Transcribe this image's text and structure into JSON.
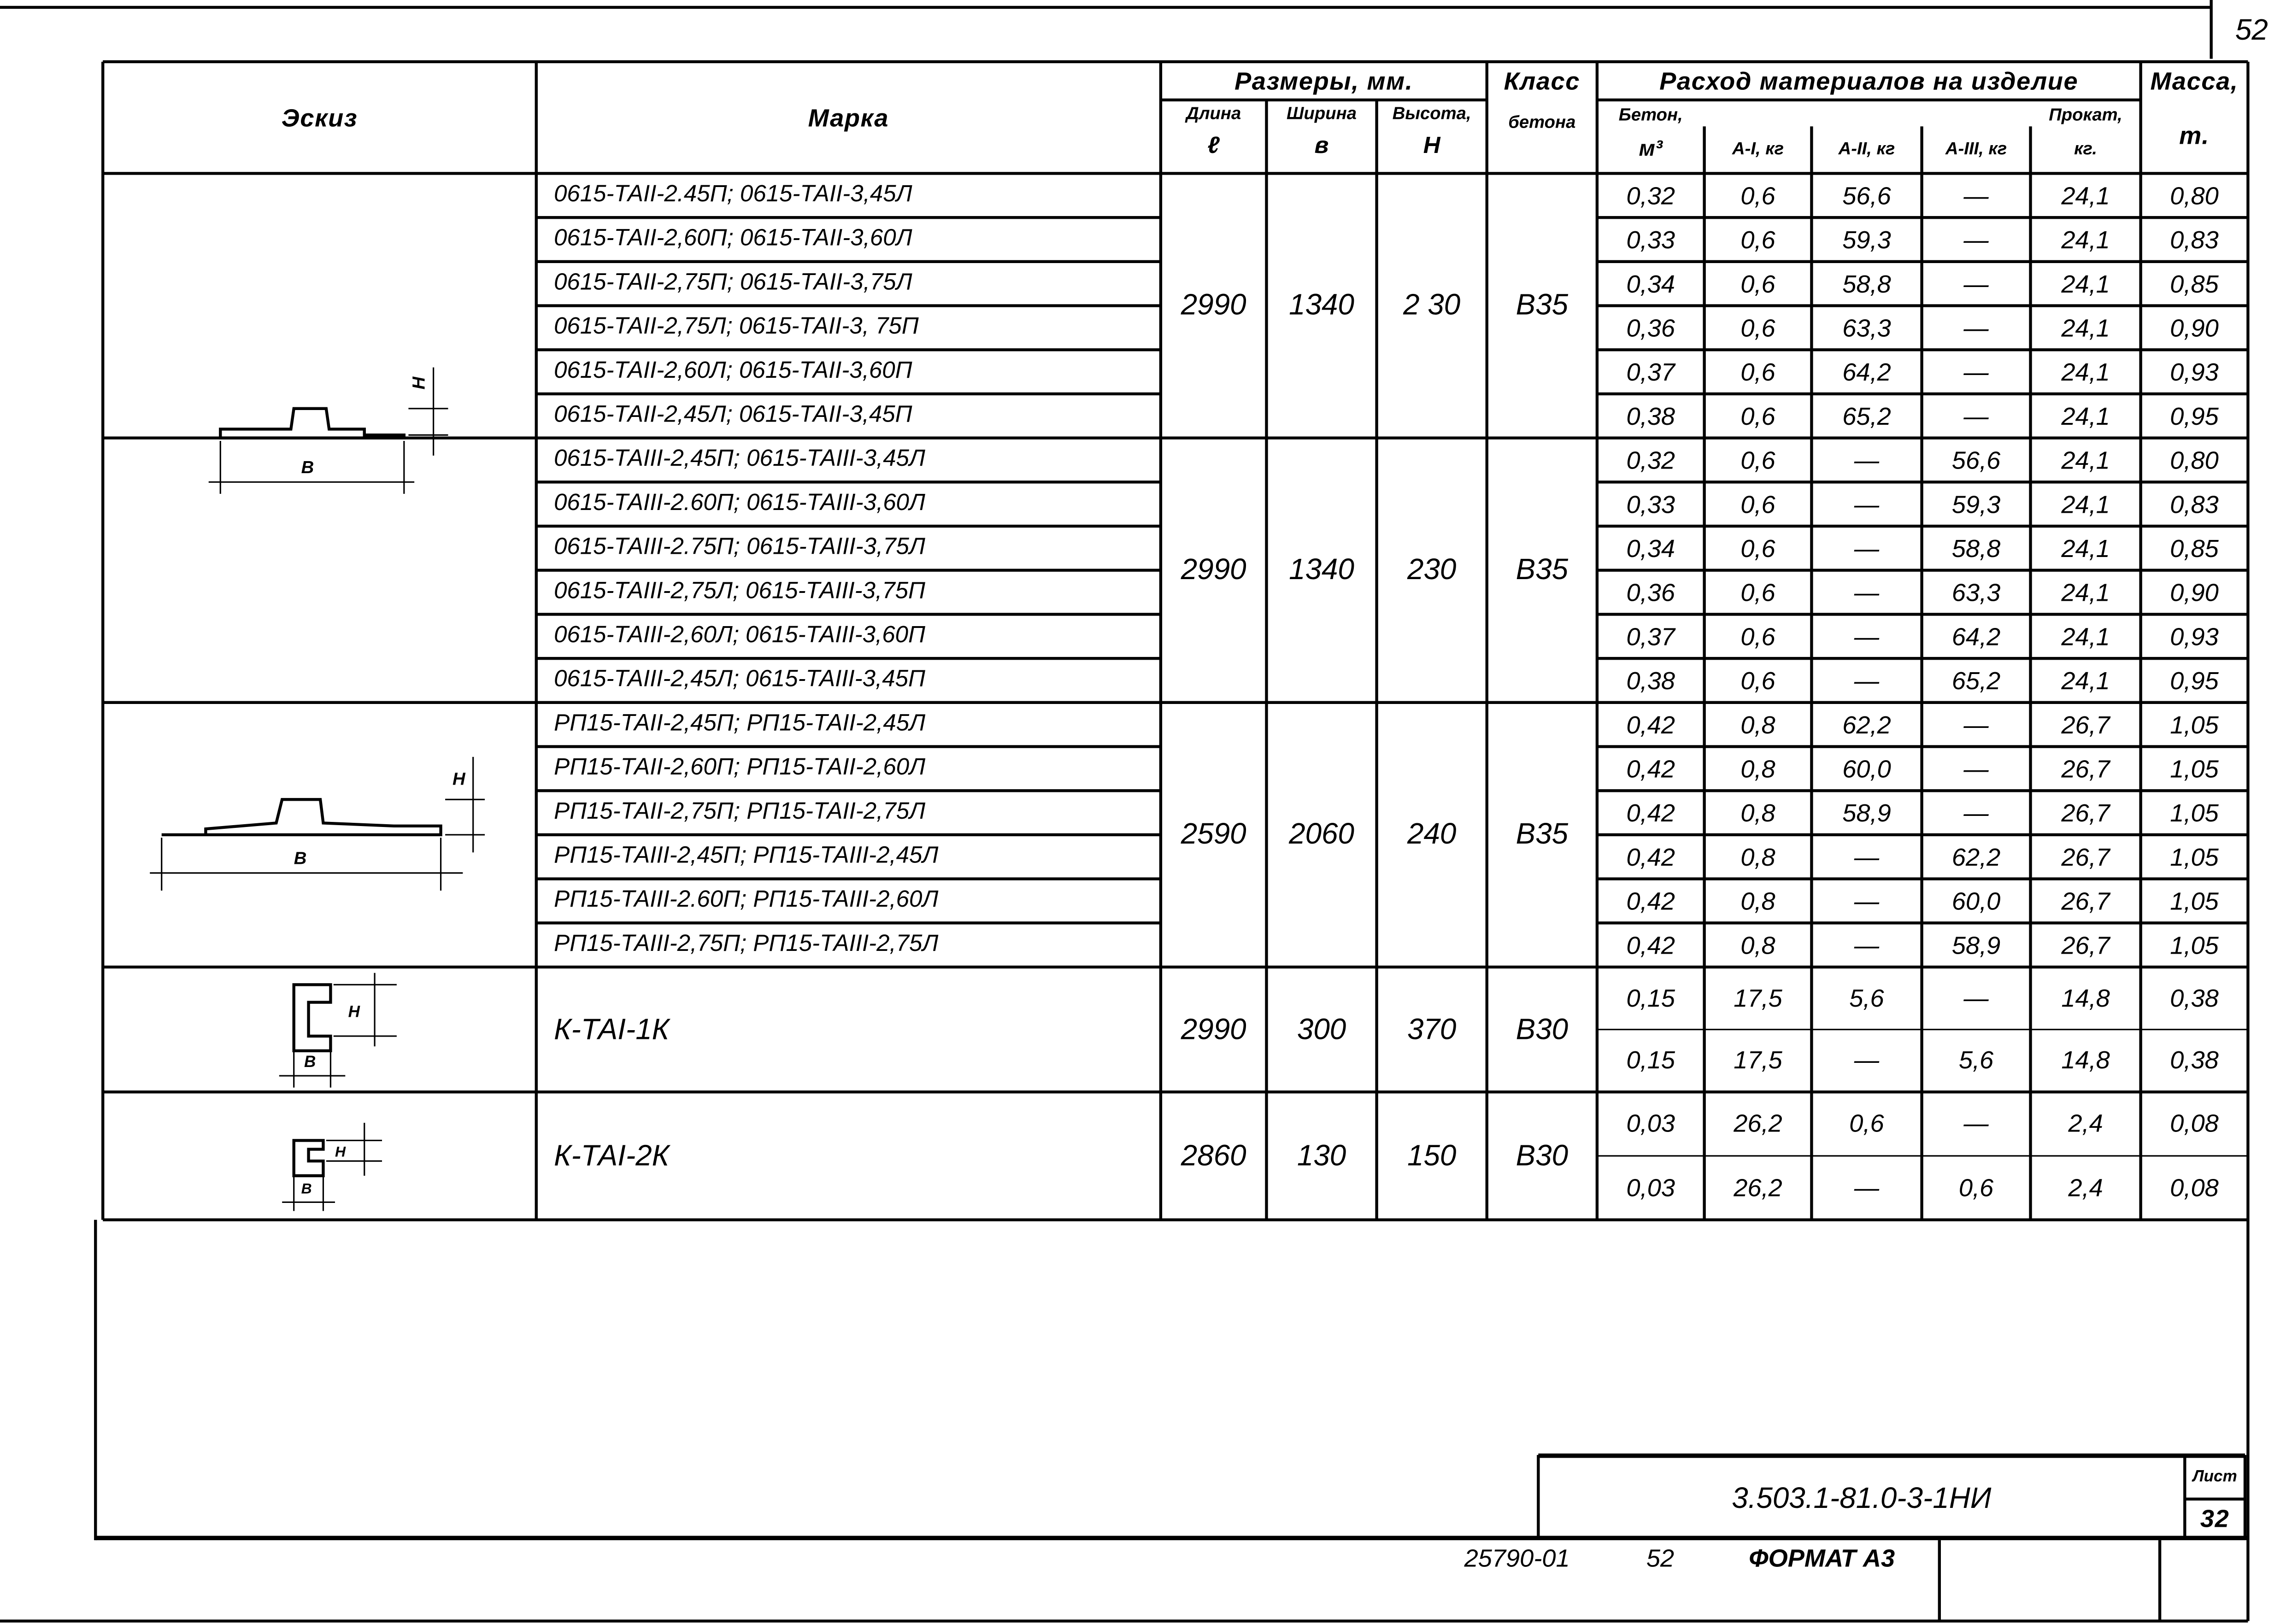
{
  "page_number": "52",
  "header": {
    "sketch": "Эскиз",
    "mark": "Марка",
    "sizes": "Размеры, мм.",
    "length": "Длина",
    "length_sym": "ℓ",
    "width": "Ширина",
    "width_sym": "в",
    "height": "Высота,",
    "height_sym": "Н",
    "class_1": "Класс",
    "class_2": "бетона",
    "materials": "Расход материалов на изделие",
    "concrete_1": "Бетон,",
    "concrete_2": "м³",
    "a1": "А-I, кг",
    "a2": "А-II, кг",
    "a3": "А-III, кг",
    "rolled_1": "Прокат,",
    "rolled_2": "кг.",
    "mass_1": "Масса,",
    "mass_2": "т."
  },
  "groups": [
    {
      "length": "2990",
      "width": "1340",
      "height": "2 30",
      "class": "В35",
      "marks": [
        "0615-ТАII-2.45П; 0615-ТАII-3,45Л",
        "0615-ТАII-2,60П; 0615-ТАII-3,60Л",
        "0615-ТАII-2,75П; 0615-ТАII-3,75Л",
        "0615-ТАII-2,75Л; 0615-ТАII-3, 75П",
        "0615-ТАII-2,60Л; 0615-ТАII-3,60П",
        "0615-ТАII-2,45Л; 0615-ТАII-3,45П"
      ],
      "rows": [
        [
          "0,32",
          "0,6",
          "56,6",
          "—",
          "24,1",
          "0,80"
        ],
        [
          "0,33",
          "0,6",
          "59,3",
          "—",
          "24,1",
          "0,83"
        ],
        [
          "0,34",
          "0,6",
          "58,8",
          "—",
          "24,1",
          "0,85"
        ],
        [
          "0,36",
          "0,6",
          "63,3",
          "—",
          "24,1",
          "0,90"
        ],
        [
          "0,37",
          "0,6",
          "64,2",
          "—",
          "24,1",
          "0,93"
        ],
        [
          "0,38",
          "0,6",
          "65,2",
          "—",
          "24,1",
          "0,95"
        ]
      ]
    },
    {
      "length": "2990",
      "width": "1340",
      "height": "230",
      "class": "В35",
      "marks": [
        "0615-ТАIII-2,45П; 0615-ТАIII-3,45Л",
        "0615-ТАIII-2.60П; 0615-ТАIII-3,60Л",
        "0615-ТАIII-2.75П; 0615-ТАIII-3,75Л",
        "0615-ТАIII-2,75Л; 0615-ТАIII-3,75П",
        "0615-ТАIII-2,60Л; 0615-ТАIII-3,60П",
        "0615-ТАIII-2,45Л; 0615-ТАIII-3,45П"
      ],
      "rows": [
        [
          "0,32",
          "0,6",
          "—",
          "56,6",
          "24,1",
          "0,80"
        ],
        [
          "0,33",
          "0,6",
          "—",
          "59,3",
          "24,1",
          "0,83"
        ],
        [
          "0,34",
          "0,6",
          "—",
          "58,8",
          "24,1",
          "0,85"
        ],
        [
          "0,36",
          "0,6",
          "—",
          "63,3",
          "24,1",
          "0,90"
        ],
        [
          "0,37",
          "0,6",
          "—",
          "64,2",
          "24,1",
          "0,93"
        ],
        [
          "0,38",
          "0,6",
          "—",
          "65,2",
          "24,1",
          "0,95"
        ]
      ]
    },
    {
      "length": "2590",
      "width": "2060",
      "height": "240",
      "class": "В35",
      "marks": [
        "РП15-ТАII-2,45П; РП15-ТАII-2,45Л",
        "РП15-ТАII-2,60П; РП15-ТАII-2,60Л",
        "РП15-ТАII-2,75П; РП15-ТАII-2,75Л",
        "РП15-ТАIII-2,45П; РП15-ТАIII-2,45Л",
        "РП15-ТАIII-2.60П; РП15-ТАIII-2,60Л",
        "РП15-ТАIII-2,75П; РП15-ТАIII-2,75Л"
      ],
      "rows": [
        [
          "0,42",
          "0,8",
          "62,2",
          "—",
          "26,7",
          "1,05"
        ],
        [
          "0,42",
          "0,8",
          "60,0",
          "—",
          "26,7",
          "1,05"
        ],
        [
          "0,42",
          "0,8",
          "58,9",
          "—",
          "26,7",
          "1,05"
        ],
        [
          "0,42",
          "0,8",
          "—",
          "62,2",
          "26,7",
          "1,05"
        ],
        [
          "0,42",
          "0,8",
          "—",
          "60,0",
          "26,7",
          "1,05"
        ],
        [
          "0,42",
          "0,8",
          "—",
          "58,9",
          "26,7",
          "1,05"
        ]
      ]
    },
    {
      "length": "2990",
      "width": "300",
      "height": "370",
      "class": "В30",
      "marks": [
        "К-ТАI-1К"
      ],
      "rows": [
        [
          "0,15",
          "17,5",
          "5,6",
          "—",
          "14,8",
          "0,38"
        ],
        [
          "0,15",
          "17,5",
          "—",
          "5,6",
          "14,8",
          "0,38"
        ]
      ]
    },
    {
      "length": "2860",
      "width": "130",
      "height": "150",
      "class": "В30",
      "marks": [
        "К-ТАI-2К"
      ],
      "rows": [
        [
          "0,03",
          "26,2",
          "0,6",
          "—",
          "2,4",
          "0,08"
        ],
        [
          "0,03",
          "26,2",
          "—",
          "0,6",
          "2,4",
          "0,08"
        ]
      ]
    }
  ],
  "sketch_labels": {
    "width": "В",
    "height": "Н"
  },
  "stamp": {
    "code": "3.503.1-81.0-3-1НИ",
    "sheet_label": "Лист",
    "sheet": "32"
  },
  "footer": {
    "order": "25790-01",
    "page": "52",
    "format": "ФОРМАТ А3"
  }
}
